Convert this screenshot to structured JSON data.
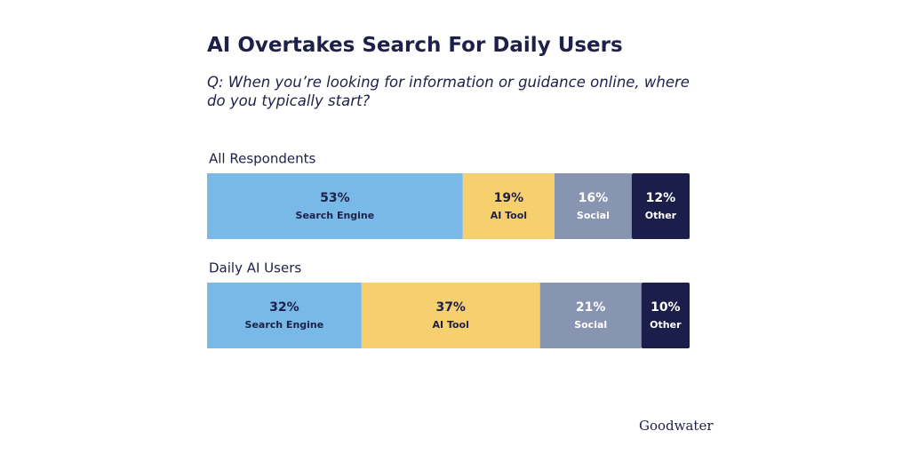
{
  "chart_data": {
    "type": "stacked-bar",
    "title": "AI Overtakes Search For Daily Users",
    "subtitle": "Q: When you’re looking for information or guidance online, where do you typically start?",
    "logo": "Goodwater",
    "categories": [
      "All Respondents",
      "Daily AI Users"
    ],
    "series": [
      {
        "name": "Search Engine",
        "color": "#78b9e8",
        "values": [
          53,
          32
        ],
        "value_labels": [
          "53%",
          "32%"
        ]
      },
      {
        "name": "AI Tool",
        "color": "#f6d06e",
        "values": [
          19,
          37
        ],
        "value_labels": [
          "19%",
          "37%"
        ]
      },
      {
        "name": "Social",
        "color": "#8795b0",
        "values": [
          16,
          21
        ],
        "value_labels": [
          "16%",
          "21%"
        ]
      },
      {
        "name": "Other",
        "color": "#1b1d4a",
        "values": [
          12,
          10
        ],
        "value_labels": [
          "12%",
          "10%"
        ]
      }
    ]
  }
}
